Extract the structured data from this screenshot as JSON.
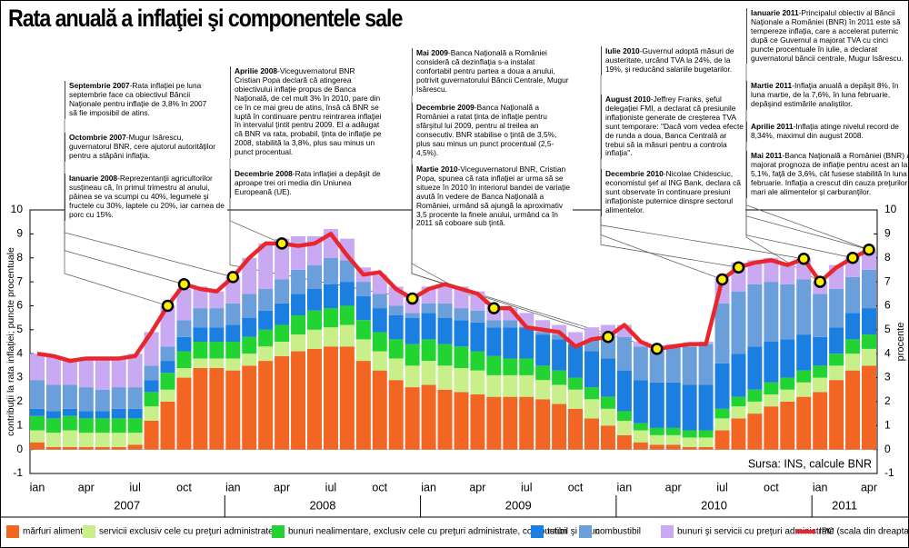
{
  "chart_data": {
    "type": "bar",
    "stacked": true,
    "title": "Rata anuală a inflaţiei şi componentele sale",
    "y_label": "contribuţii la rata inflaţiei; puncte procentuale",
    "y2_label": "procente",
    "source": "Sursa: INS, calcule BNR",
    "categories": [
      "ian",
      null,
      null,
      "apr",
      null,
      null,
      "iul",
      null,
      null,
      "oct",
      null,
      null,
      "ian",
      null,
      null,
      "apr",
      null,
      null,
      "iul",
      null,
      null,
      "oct",
      null,
      null,
      "ian",
      null,
      null,
      "apr",
      null,
      null,
      "iul",
      null,
      null,
      "oct",
      null,
      null,
      "ian",
      null,
      null,
      "apr",
      null,
      null,
      "iul",
      null,
      null,
      "oct",
      null,
      null,
      "ian",
      null,
      null,
      "apr"
    ],
    "years": [
      "2007",
      "2008",
      "2009",
      "2010",
      "2011"
    ],
    "ylim": [
      -1,
      10
    ],
    "yticks": [
      -1,
      0,
      1,
      2,
      3,
      4,
      5,
      6,
      7,
      8,
      9,
      10
    ],
    "y2lim": [
      -1,
      10
    ],
    "y2ticks": [
      -1,
      0,
      1,
      2,
      3,
      4,
      5,
      6,
      7,
      8,
      9,
      10
    ],
    "series": [
      {
        "name": "mărfuri alimentare",
        "color": "#f26522",
        "values": [
          0.3,
          0.1,
          0.1,
          0.1,
          0.1,
          0.1,
          0.2,
          1.2,
          2.0,
          3.0,
          3.4,
          3.4,
          3.3,
          3.5,
          3.7,
          3.9,
          4.1,
          4.2,
          4.3,
          4.3,
          3.7,
          3.3,
          2.9,
          2.6,
          2.7,
          2.5,
          2.4,
          2.3,
          2.2,
          2.2,
          2.2,
          2.1,
          1.9,
          1.7,
          1.3,
          1.0,
          0.6,
          0.3,
          0.2,
          0.2,
          0.1,
          0.1,
          0.8,
          1.3,
          1.5,
          1.8,
          2.0,
          2.2,
          2.4,
          2.9,
          3.3,
          3.5
        ]
      },
      {
        "name": "servicii exclusiv cele cu preţuri administrate",
        "color": "#c9ef8a",
        "values": [
          0.5,
          0.6,
          0.7,
          0.6,
          0.6,
          0.6,
          0.5,
          0.6,
          0.5,
          0.4,
          0.4,
          0.4,
          0.5,
          0.5,
          0.6,
          0.6,
          0.7,
          0.8,
          0.8,
          0.9,
          0.9,
          0.8,
          0.9,
          0.9,
          1.0,
          1.0,
          1.0,
          1.0,
          0.9,
          0.9,
          0.9,
          0.8,
          0.8,
          0.8,
          0.8,
          0.7,
          0.6,
          0.5,
          0.4,
          0.4,
          0.4,
          0.4,
          0.5,
          0.5,
          0.5,
          0.5,
          0.5,
          0.6,
          0.6,
          0.6,
          0.7,
          0.7
        ]
      },
      {
        "name": "bunuri nealimentare, exclusiv cele cu preţuri administrate, combustibil şi tutun",
        "color": "#22d431",
        "values": [
          0.6,
          0.6,
          0.6,
          0.6,
          0.6,
          0.6,
          0.6,
          0.6,
          0.7,
          0.7,
          0.7,
          0.7,
          0.7,
          0.7,
          0.7,
          0.7,
          0.8,
          0.8,
          0.8,
          0.8,
          0.8,
          0.8,
          0.8,
          0.9,
          0.9,
          0.9,
          0.9,
          0.8,
          0.8,
          0.7,
          0.7,
          0.6,
          0.6,
          0.5,
          0.5,
          0.5,
          0.4,
          0.3,
          0.3,
          0.3,
          0.3,
          0.3,
          0.4,
          0.4,
          0.5,
          0.5,
          0.5,
          0.5,
          0.5,
          0.5,
          0.6,
          0.6
        ]
      },
      {
        "name": "tutun",
        "color": "#1a7fe0",
        "values": [
          0.3,
          0.3,
          0.3,
          0.3,
          0.3,
          0.4,
          0.4,
          0.5,
          0.5,
          0.6,
          0.6,
          0.6,
          0.7,
          0.8,
          0.8,
          0.9,
          0.9,
          0.9,
          1.0,
          1.0,
          1.0,
          1.0,
          1.0,
          1.1,
          1.1,
          1.1,
          1.1,
          1.2,
          1.2,
          1.3,
          1.3,
          1.3,
          1.3,
          1.4,
          1.5,
          1.6,
          1.7,
          1.8,
          1.9,
          1.9,
          1.9,
          1.9,
          1.9,
          1.8,
          1.8,
          1.7,
          1.6,
          1.5,
          1.2,
          1.1,
          1.1,
          1.1
        ]
      },
      {
        "name": "combustibil",
        "color": "#6a9fdc",
        "values": [
          1.2,
          1.1,
          1.0,
          1.0,
          0.9,
          0.9,
          0.9,
          0.6,
          0.6,
          0.7,
          0.8,
          0.8,
          0.9,
          1.0,
          0.9,
          1.0,
          1.0,
          1.0,
          1.1,
          0.9,
          0.6,
          0.6,
          0.4,
          0.2,
          0.4,
          0.6,
          0.5,
          0.5,
          0.3,
          0.3,
          0.0,
          0.1,
          0.2,
          0.0,
          0.5,
          0.9,
          1.4,
          1.4,
          1.4,
          1.5,
          1.6,
          1.7,
          2.5,
          2.6,
          2.6,
          2.5,
          2.3,
          2.3,
          1.8,
          1.6,
          1.5,
          1.6
        ]
      },
      {
        "name": "bunuri şi servicii cu preţuri administrate",
        "color": "#c8a9f2",
        "values": [
          1.1,
          1.2,
          1.1,
          1.2,
          1.3,
          1.2,
          1.4,
          1.4,
          1.7,
          1.3,
          0.9,
          0.7,
          1.1,
          1.5,
          1.9,
          1.7,
          1.4,
          1.2,
          1.2,
          0.9,
          0.6,
          0.8,
          0.8,
          0.7,
          0.7,
          0.8,
          0.9,
          0.8,
          0.6,
          0.5,
          0.6,
          0.5,
          0.4,
          0.5,
          0.5,
          0.5,
          0.5,
          0.2,
          0.1,
          0.1,
          0.1,
          0.1,
          1.1,
          1.2,
          1.0,
          1.0,
          0.9,
          0.9,
          0.5,
          1.0,
          0.9,
          0.8
        ]
      },
      {
        "name": "IPC (scala din dreapta)",
        "type": "line",
        "axis": "y2",
        "color": "#e8262b",
        "values": [
          4.0,
          3.9,
          3.7,
          3.8,
          3.8,
          3.8,
          3.9,
          4.9,
          6.0,
          6.9,
          6.7,
          6.6,
          7.2,
          8.0,
          8.6,
          8.6,
          8.5,
          8.6,
          9.0,
          8.1,
          7.3,
          7.4,
          6.7,
          6.3,
          6.7,
          6.9,
          6.7,
          6.5,
          5.9,
          5.9,
          5.1,
          5.0,
          4.9,
          4.3,
          4.6,
          4.7,
          5.2,
          4.5,
          4.2,
          4.3,
          4.4,
          4.4,
          7.1,
          7.6,
          7.8,
          7.9,
          7.7,
          7.96,
          7.0,
          7.6,
          8.0,
          8.34
        ]
      }
    ]
  },
  "annotations": [
    {
      "date": "Septembrie 2007",
      "text": "-Rata inflaţiei pe luna septembrie face ca obiectivul Băncii Naţionale pentru inflaţie de 3,8% în 2007 să fie imposibil de atins."
    },
    {
      "date": "Octombrie 2007",
      "text": "-Mugur Isărescu, guvernatorul BNR, cere ajutorul autorităţilor pentru a stăpâni inflaţia."
    },
    {
      "date": "Ianuarie 2008",
      "text": "-Reprezentanţii agricultorilor susţineau că, în primul trimestru al anului, pâinea se va scumpi cu 40%, legumele şi fructele cu 30%, laptele cu 20%, iar carnea de porc cu 15%."
    },
    {
      "date": "Aprilie 2008",
      "text": "-Viceguvernatorul BNR Cristian Popa declară că atingerea obiectivului inflaţie propus de Banca Naţională, de cel mult 3% în 2010, pare din ce în ce mai greu de atins, însă că BNR se luptă în continuare pentru reintrarea inflaţiei în intervalul ţintit pentru 2009. El a adăugat că BNR va rata, probabil, ţinta de inflaţie pe 2008, stabilită la 3,8%, plus sau minus un punct procentual."
    },
    {
      "date": "Decembrie 2008",
      "text": "-Rata inflaţiei a depăşit de aproape trei ori media din Uniunea Europeană (UE)."
    },
    {
      "date": "Mai 2009",
      "text": "-Banca Naţională a României consideră că dezinflaţia s-a instalat confortabil pentru partea a doua a anului, potrivit guvernatorului Băncii Centrale, Mugur Isărescu."
    },
    {
      "date": "Decembrie 2009",
      "text": "-Banca Naţională a României a ratat ţinta de inflaţie pentru sfârşitul lui 2009, pentru al treilea an consecutiv. BNR stabilise o ţintă de 3,5%, plus sau minus un punct procentual (2,5-4,5%)."
    },
    {
      "date": "Martie 2010",
      "text": "-Viceguvernatorul BNR, Cristian Popa, spunea că rata inflaţiei ar urma să se situeze în 2010 în interiorul bandei de variaţie avută în vedere de Banca Naţională a României, urmând să ajungă la aproximativ 3,5 procente la finele anului, urmând ca în 2011 să coboare sub ţintă."
    },
    {
      "date": "Iulie 2010",
      "text": "-Guvernul adoptă măsuri de austeritate, urcând TVA la 24%, de la 19%, şi reducând salariile bugetarilor."
    },
    {
      "date": "August 2010",
      "text": "-Jeffrey Franks, şeful delegaţiei FMI, a declarat că presiunile inflaţioniste generate de creşterea TVA sunt temporare: \"Dacă vom vedea efecte de runda a doua, Banca Centrală ar trebui să ia măsuri pentru a controla inflaţia\"."
    },
    {
      "date": "Decembrie 2010",
      "text": "-Nicolae Chidesciuc, economistul şef al ING Bank, declara că sunt observate în continuare presiuni inflaţioniste puternice dinspre sectorul alimentelor."
    },
    {
      "date": "Ianuarie 2011",
      "text": "-Principalul obiectiv al Băncii Naţionale a României (BNR) în 2011 este să tempereze inflaţia, care a accelerat puternic după ce Guvernul a majorat TVA cu cinci puncte procentuale în iulie, a declarat guvernatorul băncii centrale, Mugur Isărescu."
    },
    {
      "date": "Martie 2011",
      "text": "-Inflaţia anuală a depăşit 8%, în luna martie, de la 7,6%, în luna februarie, depăşind estimările analiştilor."
    },
    {
      "date": "Aprilie 2011",
      "text": "-Inflaţia atinge nivelul record de 8,34%, maximul din august 2008."
    },
    {
      "date": "Mai 2011",
      "text": "-Banca Naţională a României (BNR) a majorat prognoza de inflaţie pentru acest an la 5,1%, faţă de 3,6%, cât fusese stabilită în luna februarie. Inflaţia a crescut din cauza preţurilor mari ale alimentelor şi carburanţilor."
    }
  ]
}
